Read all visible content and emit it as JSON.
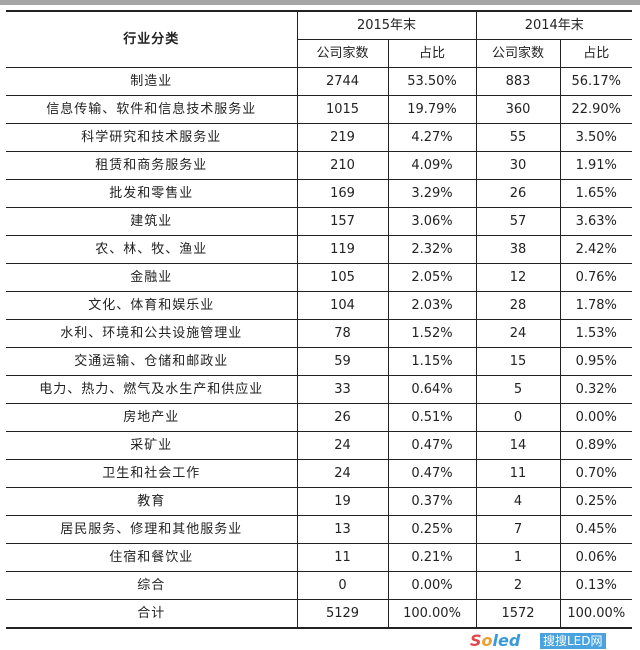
{
  "header": {
    "category": "行业分类",
    "year_2015": "2015年末",
    "year_2014": "2014年末",
    "count_label": "公司家数",
    "share_label": "占比"
  },
  "rows": [
    [
      "制造业",
      "2744",
      "53.50%",
      "883",
      "56.17%"
    ],
    [
      "信息传输、软件和信息技术服务业",
      "1015",
      "19.79%",
      "360",
      "22.90%"
    ],
    [
      "科学研究和技术服务业",
      "219",
      "4.27%",
      "55",
      "3.50%"
    ],
    [
      "租赁和商务服务业",
      "210",
      "4.09%",
      "30",
      "1.91%"
    ],
    [
      "批发和零售业",
      "169",
      "3.29%",
      "26",
      "1.65%"
    ],
    [
      "建筑业",
      "157",
      "3.06%",
      "57",
      "3.63%"
    ],
    [
      "农、林、牧、渔业",
      "119",
      "2.32%",
      "38",
      "2.42%"
    ],
    [
      "金融业",
      "105",
      "2.05%",
      "12",
      "0.76%"
    ],
    [
      "文化、体育和娱乐业",
      "104",
      "2.03%",
      "28",
      "1.78%"
    ],
    [
      "水利、环境和公共设施管理业",
      "78",
      "1.52%",
      "24",
      "1.53%"
    ],
    [
      "交通运输、仓储和邮政业",
      "59",
      "1.15%",
      "15",
      "0.95%"
    ],
    [
      "电力、热力、燃气及水生产和供应业",
      "33",
      "0.64%",
      "5",
      "0.32%"
    ],
    [
      "房地产业",
      "26",
      "0.51%",
      "0",
      "0.00%"
    ],
    [
      "采矿业",
      "24",
      "0.47%",
      "14",
      "0.89%"
    ],
    [
      "卫生和社会工作",
      "24",
      "0.47%",
      "11",
      "0.70%"
    ],
    [
      "教育",
      "19",
      "0.37%",
      "4",
      "0.25%"
    ],
    [
      "居民服务、修理和其他服务业",
      "13",
      "0.25%",
      "7",
      "0.45%"
    ],
    [
      "住宿和餐饮业",
      "11",
      "0.21%",
      "1",
      "0.06%"
    ],
    [
      "综合",
      "0",
      "0.00%",
      "2",
      "0.13%"
    ],
    [
      "合计",
      "5129",
      "100.00%",
      "1572",
      "100.00%"
    ]
  ],
  "watermark": {
    "logo": "Soled",
    "badge": "搜搜LED网"
  }
}
